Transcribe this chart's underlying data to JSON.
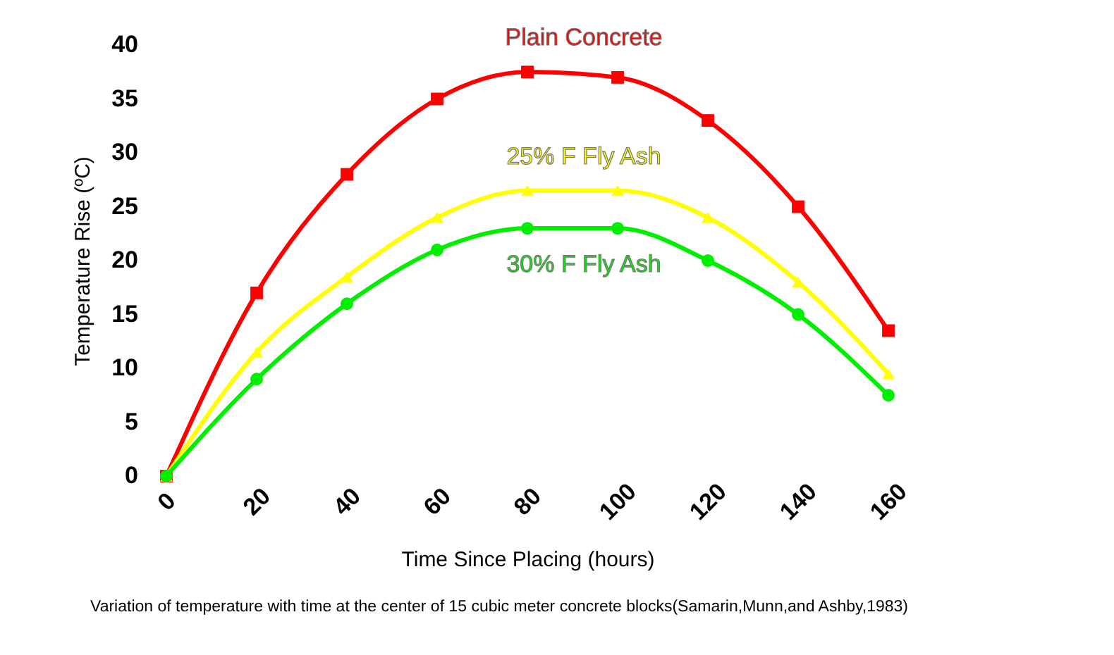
{
  "chart_data": {
    "type": "line",
    "xlabel": "Time Since Placing (hours)",
    "ylabel": "Temperature Rise (ºC)",
    "x": [
      0,
      20,
      40,
      60,
      80,
      100,
      120,
      140,
      160
    ],
    "series": [
      {
        "name": "Plain Concrete",
        "color": "#ff0000",
        "marker": "square",
        "values": [
          0,
          17,
          28,
          35,
          37.5,
          37,
          33,
          25,
          13.5
        ]
      },
      {
        "name": "25% F Fly Ash",
        "color": "#ffff00",
        "marker": "triangle",
        "values": [
          0,
          11.5,
          18.5,
          24,
          26.5,
          26.5,
          24,
          18,
          9.5
        ]
      },
      {
        "name": "30% F Fly Ash",
        "color": "#00ee00",
        "marker": "circle",
        "values": [
          0,
          9,
          16,
          21,
          23,
          23,
          20,
          15,
          7.5
        ]
      }
    ],
    "xlim": [
      0,
      160
    ],
    "xticks": [
      0,
      20,
      40,
      60,
      80,
      100,
      120,
      140,
      160
    ],
    "ylim": [
      0,
      40
    ],
    "yticks": [
      0,
      5,
      10,
      15,
      20,
      25,
      30,
      35,
      40
    ],
    "grid": false,
    "legend": false,
    "annotations": [
      "Variation of temperature with time at the center of 15 cubic meter concrete blocks(Samarin,Munn,and Ashby,1983)"
    ]
  }
}
